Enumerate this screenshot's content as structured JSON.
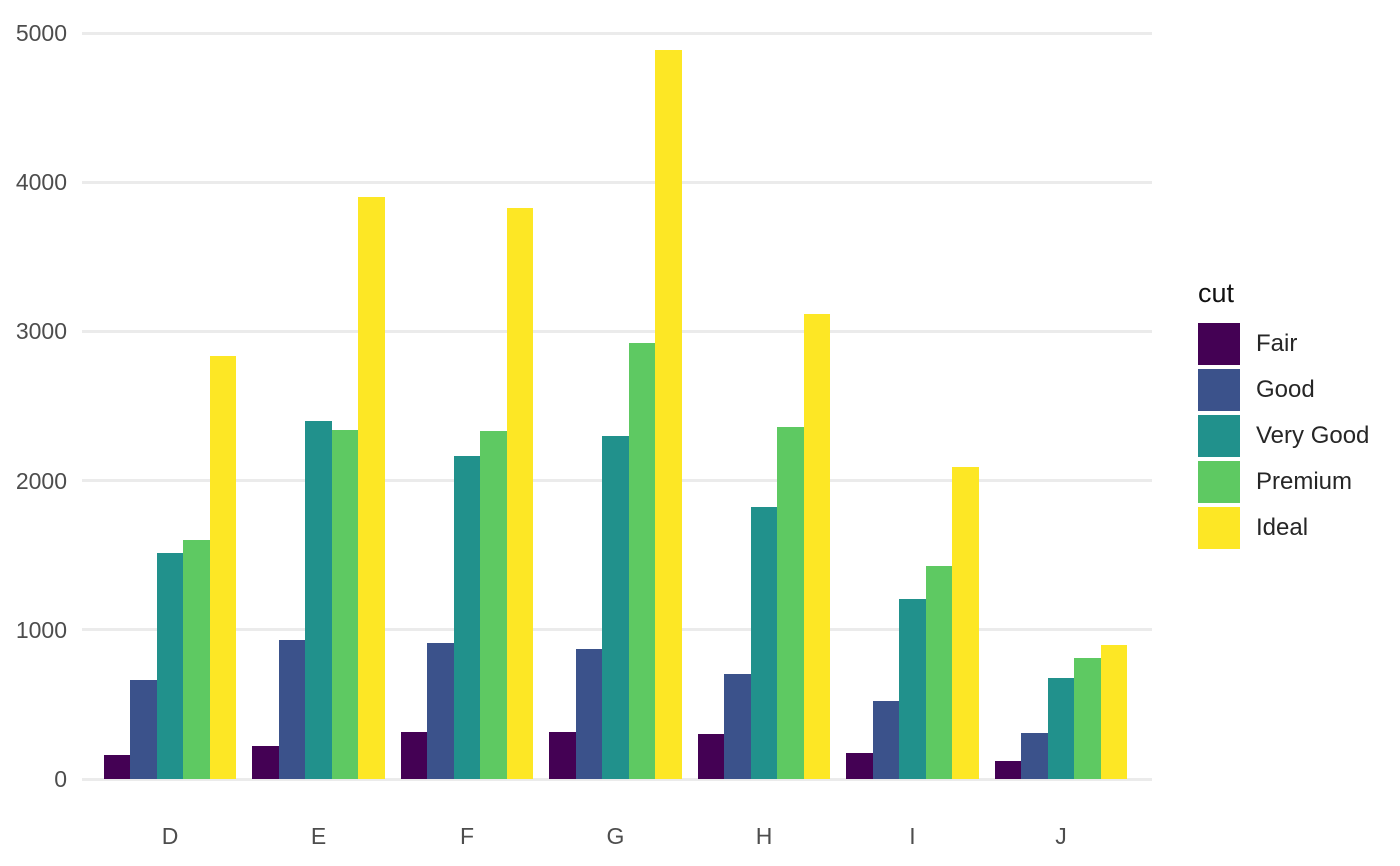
{
  "chart_data": {
    "type": "bar",
    "mode": "grouped",
    "title": "",
    "xlabel": "",
    "ylabel": "",
    "categories": [
      "D",
      "E",
      "F",
      "G",
      "H",
      "I",
      "J"
    ],
    "series": [
      {
        "name": "Fair",
        "color": "#440154",
        "values": [
          163,
          224,
          312,
          314,
          303,
          175,
          119
        ]
      },
      {
        "name": "Good",
        "color": "#3B528B",
        "values": [
          662,
          933,
          909,
          871,
          702,
          522,
          307
        ]
      },
      {
        "name": "Very Good",
        "color": "#21918C",
        "values": [
          1513,
          2400,
          2164,
          2299,
          1824,
          1204,
          678
        ]
      },
      {
        "name": "Premium",
        "color": "#5EC962",
        "values": [
          1603,
          2337,
          2331,
          2924,
          2360,
          1428,
          808
        ]
      },
      {
        "name": "Ideal",
        "color": "#FDE725",
        "values": [
          2834,
          3903,
          3826,
          4884,
          3115,
          2093,
          896
        ]
      }
    ],
    "ylim": [
      0,
      5000
    ],
    "yticks": [
      0,
      1000,
      2000,
      3000,
      4000,
      5000
    ],
    "legend_title": "cut",
    "legend_position": "right",
    "grid": true,
    "colors": {
      "background": "#ffffff",
      "gridline": "#ebebeb",
      "axis_text": "#4d4d4d",
      "legend_text": "#262626"
    }
  }
}
